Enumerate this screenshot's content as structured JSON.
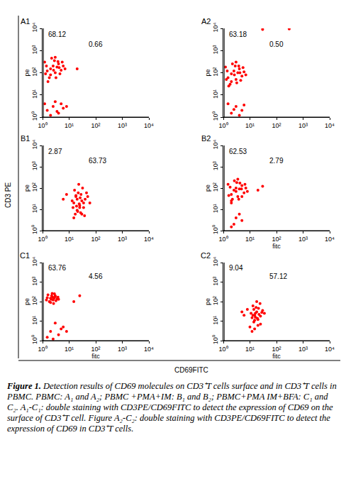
{
  "chart_data": [
    {
      "type": "scatter",
      "title": "A1",
      "color": "#ff0000",
      "marker": "circle",
      "log": true,
      "grid": false,
      "xlim": [
        1,
        10000
      ],
      "ylim": [
        1,
        10000
      ],
      "xticks": [
        {
          "value": 1,
          "label": "10⁰"
        },
        {
          "value": 10,
          "label": "10¹"
        },
        {
          "value": 100,
          "label": "10²"
        },
        {
          "value": 1000,
          "label": "10³"
        },
        {
          "value": 10000,
          "label": "10⁴"
        }
      ],
      "yticks": [
        {
          "value": 1,
          "label": "10⁰"
        },
        {
          "value": 10,
          "label": "10¹"
        },
        {
          "value": 100,
          "label": "10²"
        },
        {
          "value": 1000,
          "label": "10³"
        },
        {
          "value": 10000,
          "label": "10⁴"
        }
      ],
      "y_label": "pe",
      "gate": {
        "x": 12,
        "y": 10
      },
      "quadrant_labels": {
        "upper_left": "68.12",
        "upper_right": "0.66"
      },
      "x": [
        1.5,
        2,
        2.5,
        3,
        3.5,
        2,
        4,
        1.2,
        2.8,
        5,
        1.8,
        3.2,
        6,
        2.2,
        4.5,
        1.4,
        3.8,
        2.6,
        1.6,
        5.5,
        7,
        3,
        1.3,
        4.2,
        1.5,
        2.5,
        4,
        3,
        6,
        2,
        5,
        1.2,
        8,
        3.5,
        20
      ],
      "values": [
        120,
        150,
        200,
        100,
        180,
        80,
        250,
        300,
        350,
        130,
        60,
        60,
        200,
        450,
        90,
        200,
        320,
        130,
        40,
        300,
        150,
        500,
        90,
        170,
        2,
        3,
        1.5,
        5,
        2.5,
        1.2,
        4,
        4,
        3,
        1.8,
        150
      ]
    },
    {
      "type": "scatter",
      "title": "A2",
      "color": "#ff0000",
      "marker": "circle",
      "log": true,
      "grid": false,
      "xlim": [
        1,
        10000
      ],
      "ylim": [
        1,
        10000
      ],
      "xticks": [
        {
          "value": 1,
          "label": "10⁰"
        },
        {
          "value": 10,
          "label": "10¹"
        },
        {
          "value": 100,
          "label": "10²"
        },
        {
          "value": 1000,
          "label": "10³"
        },
        {
          "value": 10000,
          "label": "10⁴"
        }
      ],
      "yticks": [
        {
          "value": 1,
          "label": "10⁰"
        },
        {
          "value": 10,
          "label": "10¹"
        },
        {
          "value": 100,
          "label": "10²"
        },
        {
          "value": 1000,
          "label": "10³"
        },
        {
          "value": 10000,
          "label": "10⁴"
        }
      ],
      "y_label": "pe",
      "gate": {
        "x": 12,
        "y": 10
      },
      "quadrant_labels": {
        "upper_left": "63.18",
        "upper_right": "0.50"
      },
      "x": [
        1.5,
        2,
        2.5,
        3,
        3.5,
        2,
        4,
        1.2,
        2.8,
        5,
        1.8,
        3.2,
        6,
        2.2,
        4.5,
        1.4,
        3.8,
        2.6,
        1.6,
        5.5,
        7,
        3,
        1.3,
        4.2,
        2,
        3,
        5,
        1.5,
        4,
        2.5,
        6,
        30,
        300
      ],
      "values": [
        60,
        90,
        120,
        50,
        100,
        40,
        150,
        180,
        200,
        70,
        30,
        35,
        110,
        250,
        45,
        120,
        200,
        80,
        25,
        170,
        80,
        300,
        50,
        100,
        1.5,
        3,
        2,
        4,
        1.2,
        2.2,
        3.5,
        9000,
        9500
      ]
    },
    {
      "type": "scatter",
      "title": "B1",
      "color": "#ff0000",
      "marker": "circle",
      "log": true,
      "grid": false,
      "xlim": [
        1,
        10000
      ],
      "ylim": [
        1,
        10000
      ],
      "xticks": [
        {
          "value": 1,
          "label": "10⁰"
        },
        {
          "value": 10,
          "label": "10¹"
        },
        {
          "value": 100,
          "label": "10²"
        },
        {
          "value": 1000,
          "label": "10³"
        },
        {
          "value": 10000,
          "label": "10⁴"
        }
      ],
      "yticks": [
        {
          "value": 1,
          "label": "10⁰"
        },
        {
          "value": 10,
          "label": "10¹"
        },
        {
          "value": 100,
          "label": "10²"
        },
        {
          "value": 1000,
          "label": "10³"
        },
        {
          "value": 10000,
          "label": "10⁴"
        }
      ],
      "y_label": "pe",
      "gate": {
        "x": 12,
        "y": 10
      },
      "quadrant_labels": {
        "upper_left": "2.87",
        "upper_right": "63.73"
      },
      "x": [
        15,
        20,
        25,
        30,
        18,
        22,
        35,
        14,
        28,
        40,
        16,
        24,
        50,
        19,
        26,
        32,
        13,
        45,
        21,
        17,
        27,
        38,
        23,
        60,
        15,
        20,
        30,
        25,
        18,
        35,
        8,
        6
      ],
      "values": [
        20,
        30,
        15,
        25,
        40,
        60,
        20,
        12,
        50,
        30,
        80,
        18,
        40,
        14,
        35,
        100,
        25,
        60,
        8,
        6,
        7,
        5,
        150,
        20,
        4,
        9,
        6,
        12,
        45,
        12,
        50,
        30
      ]
    },
    {
      "type": "scatter",
      "title": "B2",
      "color": "#ff0000",
      "marker": "circle",
      "log": true,
      "grid": false,
      "xlim": [
        1,
        10000
      ],
      "ylim": [
        1,
        10000
      ],
      "xticks": [
        {
          "value": 1,
          "label": "10⁰"
        },
        {
          "value": 10,
          "label": "10¹"
        },
        {
          "value": 100,
          "label": "10²"
        },
        {
          "value": 1000,
          "label": "10³"
        },
        {
          "value": 10000,
          "label": "10⁴"
        }
      ],
      "yticks": [
        {
          "value": 1,
          "label": "10⁰"
        },
        {
          "value": 10,
          "label": "10¹"
        },
        {
          "value": 100,
          "label": "10²"
        },
        {
          "value": 1000,
          "label": "10³"
        },
        {
          "value": 10000,
          "label": "10⁴"
        }
      ],
      "y_label": "pe",
      "x_label": "fitc",
      "gate": {
        "x": 12,
        "y": 10
      },
      "quadrant_labels": {
        "upper_left": "62.53",
        "upper_right": "2.79"
      },
      "x": [
        2,
        2.5,
        3,
        3.5,
        4,
        2.2,
        5,
        1.5,
        3.2,
        6,
        2,
        3.8,
        7,
        2.6,
        5,
        1.8,
        4.2,
        3,
        2,
        6.5,
        8,
        3.5,
        1.6,
        4.8,
        20,
        30,
        2.5,
        3,
        5,
        2,
        4
      ],
      "values": [
        50,
        80,
        100,
        40,
        90,
        30,
        130,
        150,
        180,
        60,
        25,
        30,
        100,
        220,
        40,
        110,
        170,
        70,
        20,
        150,
        70,
        260,
        45,
        90,
        80,
        120,
        2,
        4,
        3,
        1.5,
        6
      ]
    },
    {
      "type": "scatter",
      "title": "C1",
      "color": "#ff0000",
      "marker": "circle",
      "log": true,
      "grid": false,
      "xlim": [
        1,
        10000
      ],
      "ylim": [
        1,
        10000
      ],
      "xticks": [
        {
          "value": 1,
          "label": "10⁰"
        },
        {
          "value": 10,
          "label": "10¹"
        },
        {
          "value": 100,
          "label": "10²"
        },
        {
          "value": 1000,
          "label": "10³"
        },
        {
          "value": 10000,
          "label": "10⁴"
        }
      ],
      "yticks": [
        {
          "value": 1,
          "label": "10⁰"
        },
        {
          "value": 10,
          "label": "10¹"
        },
        {
          "value": 100,
          "label": "10²"
        },
        {
          "value": 1000,
          "label": "10³"
        },
        {
          "value": 10000,
          "label": "10⁴"
        }
      ],
      "y_label": "pe",
      "x_label": "fitc",
      "gate": {
        "x": 12,
        "y": 10
      },
      "quadrant_labels": {
        "upper_left": "63.76",
        "upper_right": "4.56"
      },
      "x": [
        2,
        2.5,
        3,
        1.8,
        2.2,
        3.5,
        1.5,
        2.8,
        4,
        2,
        2.4,
        3.2,
        1.6,
        2.6,
        3,
        2.1,
        1.4,
        3.8,
        2.3,
        2.7,
        15,
        25,
        2,
        4,
        6,
        1.5,
        3,
        8,
        2.5,
        5
      ],
      "values": [
        150,
        120,
        180,
        100,
        200,
        140,
        160,
        250,
        130,
        90,
        170,
        110,
        220,
        80,
        200,
        130,
        120,
        170,
        260,
        150,
        100,
        200,
        3,
        2,
        5,
        1.5,
        8,
        3,
        1.2,
        4
      ]
    },
    {
      "type": "scatter",
      "title": "C2",
      "color": "#ff0000",
      "marker": "circle",
      "log": true,
      "grid": false,
      "xlim": [
        1,
        10000
      ],
      "ylim": [
        1,
        10000
      ],
      "xticks": [
        {
          "value": 1,
          "label": "10⁰"
        },
        {
          "value": 10,
          "label": "10¹"
        },
        {
          "value": 100,
          "label": "10²"
        },
        {
          "value": 1000,
          "label": "10³"
        },
        {
          "value": 10000,
          "label": "10⁴"
        }
      ],
      "yticks": [
        {
          "value": 1,
          "label": "10⁰"
        },
        {
          "value": 10,
          "label": "10¹"
        },
        {
          "value": 100,
          "label": "10²"
        },
        {
          "value": 1000,
          "label": "10³"
        },
        {
          "value": 10000,
          "label": "10⁴"
        }
      ],
      "y_label": "pe",
      "x_label": "fitc",
      "gate": {
        "x": 12,
        "y": 10
      },
      "quadrant_labels": {
        "upper_left": "9.04",
        "upper_right": "57.12"
      },
      "x": [
        12,
        15,
        18,
        20,
        14,
        16,
        25,
        13,
        22,
        30,
        17,
        19,
        11,
        24,
        15,
        28,
        21,
        13,
        16,
        35,
        18,
        14,
        20,
        6,
        8,
        5,
        15,
        25,
        12,
        10
      ],
      "values": [
        15,
        20,
        30,
        12,
        40,
        25,
        18,
        60,
        22,
        35,
        50,
        14,
        25,
        80,
        11,
        28,
        45,
        20,
        16,
        25,
        100,
        9,
        6,
        20,
        40,
        30,
        4,
        7,
        3,
        5
      ]
    }
  ],
  "figure_labels": {
    "y": "CD3 PE",
    "x": "CD69FITC"
  },
  "caption": {
    "label": "Figure 1.",
    "text": "Detection results of CD69 molecules on CD3⁺T cells surface and in CD3⁺T cells in PBMC. PBMC: A₁ and A₂; PBMC +PMA+IM: B₁ and B₂; PBMC+PMA IM+BFA: C₁ and C₂. A₁-C₁: double staining with CD3PE/CD69FITC to detect the expression of CD69 on the surface of CD3⁺T cell. Figure A₂-C₂: double staining with CD3PE/CD69FITC to detect the expression of CD69 in CD3⁺T cells."
  }
}
